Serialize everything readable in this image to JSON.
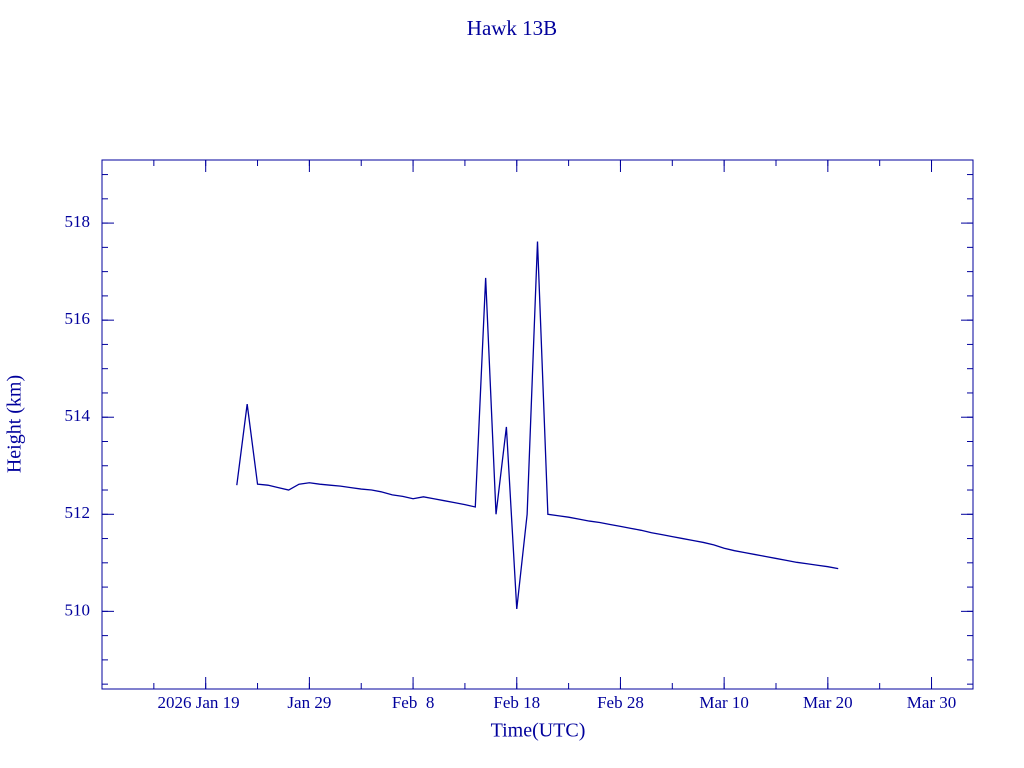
{
  "chart_data": {
    "type": "line",
    "title": "Hawk 13B",
    "x_label": "Time(UTC)",
    "y_label": "Height (km)",
    "color": "#00009c",
    "x": [
      "2026-01-22",
      "2026-01-23",
      "2026-01-24",
      "2026-01-25",
      "2026-01-26",
      "2026-01-27",
      "2026-01-28",
      "2026-01-29",
      "2026-01-30",
      "2026-01-31",
      "2026-02-01",
      "2026-02-02",
      "2026-02-03",
      "2026-02-04",
      "2026-02-05",
      "2026-02-06",
      "2026-02-07",
      "2026-02-08",
      "2026-02-09",
      "2026-02-10",
      "2026-02-11",
      "2026-02-12",
      "2026-02-13",
      "2026-02-14",
      "2026-02-15",
      "2026-02-16",
      "2026-02-17",
      "2026-02-18",
      "2026-02-19",
      "2026-02-20",
      "2026-02-21",
      "2026-02-22",
      "2026-02-23",
      "2026-02-24",
      "2026-02-25",
      "2026-02-26",
      "2026-02-27",
      "2026-02-28",
      "2026-03-01",
      "2026-03-02",
      "2026-03-03",
      "2026-03-04",
      "2026-03-05",
      "2026-03-06",
      "2026-03-07",
      "2026-03-08",
      "2026-03-09",
      "2026-03-10",
      "2026-03-11",
      "2026-03-12",
      "2026-03-13",
      "2026-03-14",
      "2026-03-15",
      "2026-03-16",
      "2026-03-17",
      "2026-03-18",
      "2026-03-19",
      "2026-03-20",
      "2026-03-21"
    ],
    "values": [
      512.6,
      514.27,
      512.62,
      512.6,
      512.55,
      512.5,
      512.62,
      512.65,
      512.62,
      512.6,
      512.58,
      512.55,
      512.52,
      512.5,
      512.46,
      512.4,
      512.37,
      512.32,
      512.36,
      512.32,
      512.28,
      512.24,
      512.2,
      512.15,
      516.87,
      512.0,
      513.8,
      510.05,
      512.0,
      517.62,
      512.0,
      511.97,
      511.94,
      511.9,
      511.86,
      511.83,
      511.79,
      511.75,
      511.71,
      511.67,
      511.62,
      511.58,
      511.54,
      511.5,
      511.46,
      511.42,
      511.37,
      511.3,
      511.25,
      511.21,
      511.17,
      511.13,
      511.09,
      511.05,
      511.01,
      510.98,
      510.95,
      510.92,
      510.88
    ],
    "xlim": [
      "2026-01-09",
      "2026-04-03"
    ],
    "xticks": [
      {
        "value": "2026-01-19",
        "label": "2026 Jan 19"
      },
      {
        "value": "2026-01-29",
        "label": "Jan 29"
      },
      {
        "value": "2026-02-08",
        "label": "Feb  8"
      },
      {
        "value": "2026-02-18",
        "label": "Feb 18"
      },
      {
        "value": "2026-02-28",
        "label": "Feb 28"
      },
      {
        "value": "2026-03-10",
        "label": "Mar 10"
      },
      {
        "value": "2026-03-20",
        "label": "Mar 20"
      },
      {
        "value": "2026-03-30",
        "label": "Mar 30"
      }
    ],
    "ylim": [
      508.4,
      519.3
    ],
    "yticks": [
      510,
      512,
      514,
      516,
      518
    ],
    "grid": false
  }
}
